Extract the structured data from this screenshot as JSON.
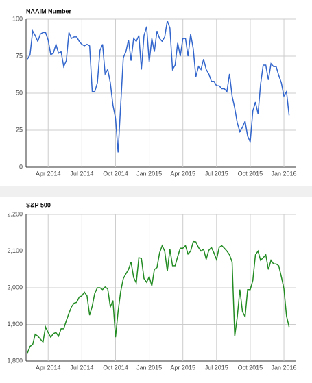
{
  "chart_data": [
    {
      "type": "line",
      "title": "NAAIM Number",
      "color": "#3366cc",
      "grid": true,
      "ylim": [
        0,
        100
      ],
      "yticks": [
        0,
        25,
        50,
        75,
        100
      ],
      "categories": [
        null,
        null,
        null,
        null,
        null,
        null,
        null,
        null,
        "Apr 2014",
        null,
        null,
        null,
        null,
        null,
        null,
        null,
        null,
        null,
        null,
        null,
        null,
        "Jul 2014",
        null,
        null,
        null,
        null,
        null,
        null,
        null,
        null,
        null,
        null,
        null,
        null,
        "Oct 2014",
        null,
        null,
        null,
        null,
        null,
        null,
        null,
        null,
        null,
        null,
        null,
        null,
        "Jan 2015",
        null,
        null,
        null,
        null,
        null,
        null,
        null,
        null,
        null,
        null,
        null,
        null,
        "Apr 2015",
        null,
        null,
        null,
        null,
        null,
        null,
        null,
        null,
        null,
        null,
        null,
        null,
        "Jul 2015",
        null,
        null,
        null,
        null,
        null,
        null,
        null,
        null,
        null,
        null,
        null,
        null,
        "Oct 2015",
        null,
        null,
        null,
        null,
        null,
        null,
        null,
        null,
        null,
        null,
        null,
        null,
        "Jan 2016",
        null,
        null
      ],
      "values": [
        73,
        76,
        92,
        89,
        85,
        90,
        91,
        91,
        86,
        76,
        77,
        83,
        77,
        78,
        68,
        72,
        91,
        87,
        88,
        88,
        85,
        83,
        82,
        83,
        82,
        51,
        51,
        57,
        79,
        83,
        63,
        66,
        57,
        42,
        33,
        10,
        42,
        74,
        78,
        86,
        72,
        87,
        85,
        89,
        66,
        89,
        95,
        71,
        87,
        78,
        92,
        87,
        85,
        88,
        99,
        94,
        66,
        69,
        84,
        75,
        87,
        87,
        75,
        90,
        80,
        61,
        68,
        66,
        73,
        66,
        63,
        58,
        58,
        55,
        55,
        53,
        53,
        51,
        63,
        48,
        40,
        30,
        24,
        27,
        31,
        21,
        17,
        38,
        44,
        36,
        56,
        69,
        69,
        59,
        70,
        68,
        68,
        62,
        57,
        48,
        51,
        35
      ]
    },
    {
      "type": "line",
      "title": "S&P 500",
      "color": "#228b22",
      "grid": true,
      "ylim": [
        1800,
        2200
      ],
      "yticks": [
        {
          "value": 1800,
          "label": "1,800"
        },
        {
          "value": 1900,
          "label": "1,900"
        },
        {
          "value": 2000,
          "label": "2,000"
        },
        {
          "value": 2100,
          "label": "2,100"
        },
        {
          "value": 2200,
          "label": "2,200"
        }
      ],
      "categories": [
        null,
        null,
        null,
        null,
        null,
        null,
        null,
        null,
        "Apr 2014",
        null,
        null,
        null,
        null,
        null,
        null,
        null,
        null,
        null,
        null,
        null,
        null,
        "Jul 2014",
        null,
        null,
        null,
        null,
        null,
        null,
        null,
        null,
        null,
        null,
        null,
        null,
        "Oct 2014",
        null,
        null,
        null,
        null,
        null,
        null,
        null,
        null,
        null,
        null,
        null,
        null,
        "Jan 2015",
        null,
        null,
        null,
        null,
        null,
        null,
        null,
        null,
        null,
        null,
        null,
        null,
        "Apr 2015",
        null,
        null,
        null,
        null,
        null,
        null,
        null,
        null,
        null,
        null,
        null,
        null,
        "Jul 2015",
        null,
        null,
        null,
        null,
        null,
        null,
        null,
        null,
        null,
        null,
        null,
        null,
        "Oct 2015",
        null,
        null,
        null,
        null,
        null,
        null,
        null,
        null,
        null,
        null,
        null,
        null,
        "Jan 2016",
        null,
        null
      ],
      "values": [
        1822,
        1840,
        1845,
        1873,
        1868,
        1860,
        1852,
        1893,
        1878,
        1865,
        1875,
        1878,
        1868,
        1888,
        1888,
        1910,
        1930,
        1948,
        1958,
        1960,
        1975,
        1978,
        1988,
        1978,
        1925,
        1950,
        1985,
        2000,
        2000,
        1995,
        2002,
        1997,
        1948,
        1965,
        1865,
        1935,
        1990,
        2025,
        2038,
        2050,
        2070,
        2028,
        2013,
        2082,
        2080,
        2025,
        2015,
        2030,
        2005,
        2050,
        2055,
        2095,
        2115,
        2100,
        2045,
        2105,
        2060,
        2060,
        2085,
        2108,
        2108,
        2115,
        2092,
        2100,
        2126,
        2125,
        2110,
        2100,
        2105,
        2078,
        2102,
        2110,
        2095,
        2077,
        2110,
        2115,
        2108,
        2100,
        2090,
        2070,
        1868,
        1920,
        1995,
        1935,
        1921,
        1995,
        1995,
        2020,
        2090,
        2100,
        2075,
        2082,
        2090,
        2050,
        2075,
        2065,
        2065,
        2060,
        2030,
        1998,
        1923,
        1893
      ]
    }
  ]
}
